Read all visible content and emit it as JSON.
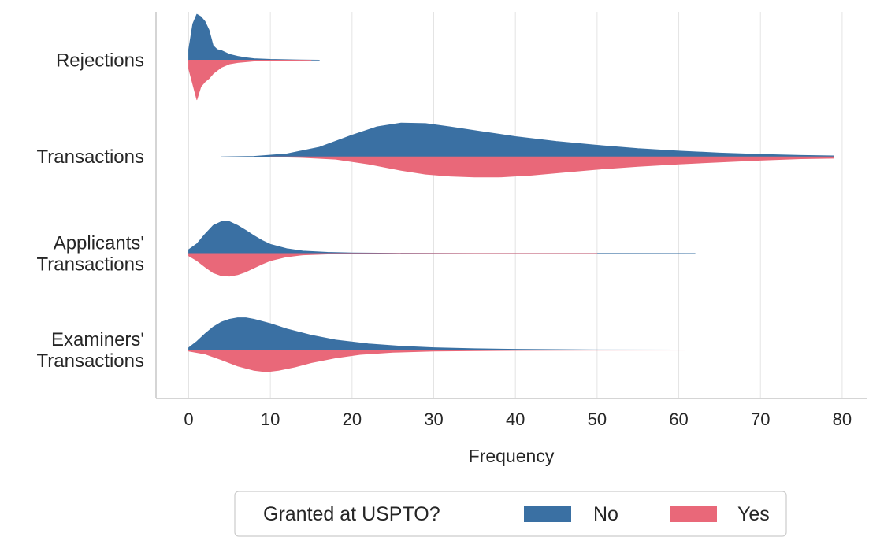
{
  "chart_data": {
    "type": "split-violin",
    "xlabel": "Frequency",
    "xlim": [
      -4,
      83
    ],
    "x_ticks": [
      0,
      10,
      20,
      30,
      40,
      50,
      60,
      70,
      80
    ],
    "grid": "vertical",
    "categories": [
      "Rejections",
      "Transactions",
      "Applicants' Transactions",
      "Examiners' Transactions"
    ],
    "category_label_lines": [
      [
        "Rejections"
      ],
      [
        "Transactions"
      ],
      [
        "Applicants'",
        "Transactions"
      ],
      [
        "Examiners'",
        "Transactions"
      ]
    ],
    "series": [
      {
        "name": "No",
        "color": "#3a70a3",
        "side": "upper",
        "distributions": [
          {
            "range": [
              0,
              16
            ],
            "points": [
              [
                0,
                0.22
              ],
              [
                0.5,
                0.75
              ],
              [
                1,
                0.95
              ],
              [
                1.5,
                0.9
              ],
              [
                2,
                0.8
              ],
              [
                2.5,
                0.62
              ],
              [
                3,
                0.3
              ],
              [
                3.5,
                0.22
              ],
              [
                4,
                0.2
              ],
              [
                5,
                0.12
              ],
              [
                6,
                0.08
              ],
              [
                7,
                0.05
              ],
              [
                8,
                0.03
              ],
              [
                10,
                0.015
              ],
              [
                13,
                0.005
              ],
              [
                16,
                0
              ]
            ]
          },
          {
            "range": [
              4,
              79
            ],
            "points": [
              [
                4,
                0
              ],
              [
                8,
                0.01
              ],
              [
                12,
                0.06
              ],
              [
                16,
                0.2
              ],
              [
                20,
                0.45
              ],
              [
                23,
                0.62
              ],
              [
                26,
                0.7
              ],
              [
                29,
                0.69
              ],
              [
                32,
                0.62
              ],
              [
                36,
                0.52
              ],
              [
                40,
                0.42
              ],
              [
                45,
                0.32
              ],
              [
                50,
                0.24
              ],
              [
                55,
                0.17
              ],
              [
                60,
                0.12
              ],
              [
                65,
                0.08
              ],
              [
                70,
                0.05
              ],
              [
                75,
                0.03
              ],
              [
                79,
                0.02
              ]
            ]
          },
          {
            "range": [
              0,
              62
            ],
            "points": [
              [
                0,
                0.08
              ],
              [
                1,
                0.2
              ],
              [
                2,
                0.4
              ],
              [
                3,
                0.58
              ],
              [
                4,
                0.66
              ],
              [
                5,
                0.66
              ],
              [
                6,
                0.58
              ],
              [
                7,
                0.48
              ],
              [
                8,
                0.37
              ],
              [
                9,
                0.27
              ],
              [
                10,
                0.19
              ],
              [
                12,
                0.1
              ],
              [
                14,
                0.05
              ],
              [
                17,
                0.025
              ],
              [
                20,
                0.012
              ],
              [
                25,
                0.005
              ],
              [
                35,
                0.002
              ],
              [
                50,
                0.001
              ],
              [
                62,
                0
              ]
            ]
          },
          {
            "range": [
              0,
              79
            ],
            "points": [
              [
                0,
                0.05
              ],
              [
                1,
                0.18
              ],
              [
                2,
                0.34
              ],
              [
                3,
                0.48
              ],
              [
                4,
                0.58
              ],
              [
                5,
                0.64
              ],
              [
                6,
                0.67
              ],
              [
                7,
                0.67
              ],
              [
                8,
                0.64
              ],
              [
                10,
                0.55
              ],
              [
                12,
                0.44
              ],
              [
                15,
                0.31
              ],
              [
                18,
                0.21
              ],
              [
                22,
                0.13
              ],
              [
                26,
                0.08
              ],
              [
                30,
                0.05
              ],
              [
                35,
                0.03
              ],
              [
                40,
                0.017
              ],
              [
                50,
                0.006
              ],
              [
                60,
                0.003
              ],
              [
                70,
                0.001
              ],
              [
                79,
                0
              ]
            ]
          }
        ]
      },
      {
        "name": "Yes",
        "color": "#e96879",
        "side": "lower",
        "distributions": [
          {
            "range": [
              0,
              15
            ],
            "points": [
              [
                0,
                0.18
              ],
              [
                0.5,
                0.5
              ],
              [
                1,
                0.82
              ],
              [
                1.5,
                0.55
              ],
              [
                2,
                0.45
              ],
              [
                2.5,
                0.38
              ],
              [
                3,
                0.28
              ],
              [
                4,
                0.15
              ],
              [
                5,
                0.08
              ],
              [
                6,
                0.05
              ],
              [
                8,
                0.02
              ],
              [
                10,
                0.01
              ],
              [
                15,
                0
              ]
            ]
          },
          {
            "range": [
              10,
              79
            ],
            "points": [
              [
                10,
                0
              ],
              [
                14,
                0.015
              ],
              [
                18,
                0.05
              ],
              [
                22,
                0.15
              ],
              [
                26,
                0.28
              ],
              [
                29,
                0.36
              ],
              [
                32,
                0.4
              ],
              [
                35,
                0.42
              ],
              [
                38,
                0.42
              ],
              [
                42,
                0.38
              ],
              [
                46,
                0.32
              ],
              [
                50,
                0.26
              ],
              [
                55,
                0.2
              ],
              [
                60,
                0.15
              ],
              [
                65,
                0.11
              ],
              [
                70,
                0.07
              ],
              [
                75,
                0.04
              ],
              [
                79,
                0.03
              ]
            ]
          },
          {
            "range": [
              0,
              50
            ],
            "points": [
              [
                0,
                0.05
              ],
              [
                1,
                0.15
              ],
              [
                2,
                0.28
              ],
              [
                3,
                0.4
              ],
              [
                4,
                0.46
              ],
              [
                5,
                0.47
              ],
              [
                6,
                0.44
              ],
              [
                7,
                0.38
              ],
              [
                8,
                0.3
              ],
              [
                9,
                0.22
              ],
              [
                10,
                0.15
              ],
              [
                12,
                0.07
              ],
              [
                14,
                0.03
              ],
              [
                17,
                0.012
              ],
              [
                20,
                0.005
              ],
              [
                30,
                0.001
              ],
              [
                50,
                0
              ]
            ]
          },
          {
            "range": [
              0,
              62
            ],
            "points": [
              [
                0,
                0.02
              ],
              [
                2,
                0.08
              ],
              [
                4,
                0.2
              ],
              [
                6,
                0.33
              ],
              [
                8,
                0.42
              ],
              [
                9,
                0.44
              ],
              [
                10,
                0.44
              ],
              [
                11,
                0.42
              ],
              [
                13,
                0.35
              ],
              [
                15,
                0.26
              ],
              [
                18,
                0.16
              ],
              [
                21,
                0.09
              ],
              [
                25,
                0.045
              ],
              [
                30,
                0.02
              ],
              [
                40,
                0.006
              ],
              [
                50,
                0.002
              ],
              [
                62,
                0
              ]
            ]
          }
        ]
      }
    ],
    "legend": {
      "title": "Granted at USPTO?",
      "placement": "bottom-center"
    }
  }
}
